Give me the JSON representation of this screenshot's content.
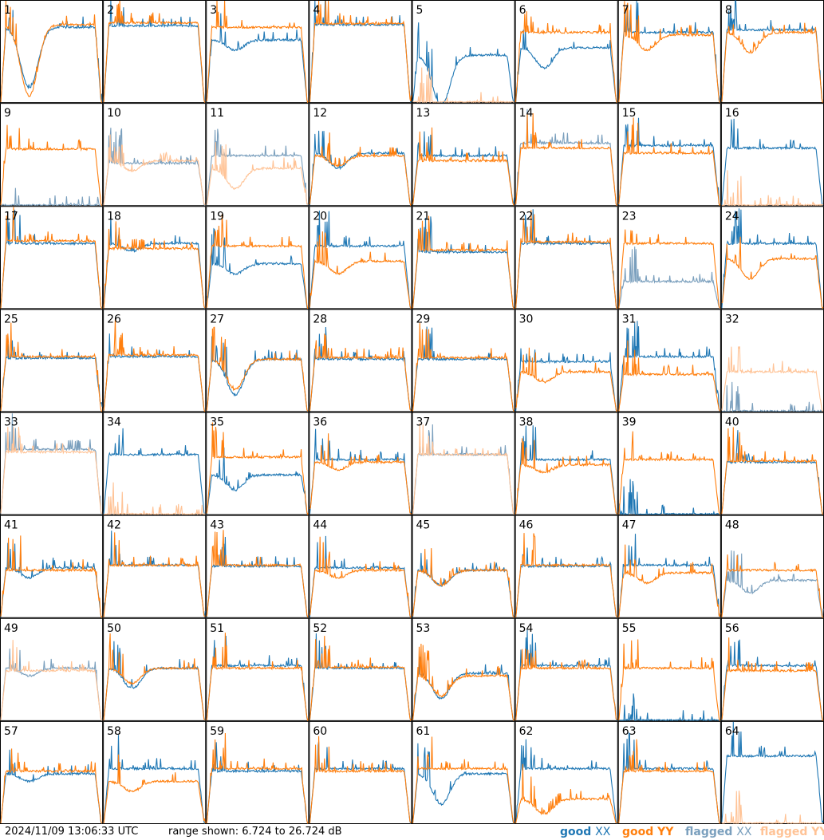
{
  "footer": {
    "timestamp": "2024/11/09 13:06:33 UTC",
    "range_text": "range shown: 6.724 to 26.724 dB"
  },
  "legend": [
    {
      "word": "good",
      "pol": "XX",
      "color": "#1f77b4"
    },
    {
      "word": "good",
      "pol": "YY",
      "color": "#ff7f0e"
    },
    {
      "word": "flagged",
      "pol": "XX",
      "color": "#7a9fbd"
    },
    {
      "word": "flagged",
      "pol": "YY",
      "color": "#ffc396"
    }
  ],
  "colors": {
    "good_xx": "#1f77b4",
    "good_yy": "#ff7f0e",
    "flagged_xx": "#7a9fbd",
    "flagged_yy": "#ffc396"
  },
  "chart_data": {
    "type": "line",
    "title": "",
    "xlabel": "",
    "ylabel": "",
    "ylim": [
      6.724,
      26.724
    ],
    "grid": false,
    "legend_placement": "bottom-right",
    "layout": "8x8 small multiples",
    "panel_profile_levels_db": {
      "description": "approximate flat passband level per panel, in dB",
      "panels": [
        {
          "id": 1,
          "xx": 21.5,
          "yy": 22.0,
          "xx_dip": 12.0,
          "yy_dip": 14.0,
          "xx_flagged": false,
          "yy_flagged": false
        },
        {
          "id": 2,
          "xx": 21.8,
          "yy": 22.4,
          "xx_dip": 0,
          "yy_dip": 0,
          "xx_flagged": false,
          "yy_flagged": false
        },
        {
          "id": 3,
          "xx": 19.0,
          "yy": 21.5,
          "xx_dip": 2.0,
          "yy_dip": 0,
          "xx_flagged": false,
          "yy_flagged": false
        },
        {
          "id": 4,
          "xx": 22.0,
          "yy": 22.2,
          "xx_dip": 0,
          "yy_dip": 0,
          "xx_flagged": false,
          "yy_flagged": false
        },
        {
          "id": 5,
          "xx": 16.0,
          "yy": 6.724,
          "xx_dip": 10.0,
          "yy_dip": 0,
          "xx_flagged": false,
          "yy_flagged": true
        },
        {
          "id": 6,
          "xx": 17.5,
          "yy": 20.5,
          "xx_dip": 4.0,
          "yy_dip": 0,
          "xx_flagged": false,
          "yy_flagged": false
        },
        {
          "id": 7,
          "xx": 20.5,
          "yy": 20.0,
          "xx_dip": 0,
          "yy_dip": 3.0,
          "xx_flagged": false,
          "yy_flagged": false
        },
        {
          "id": 8,
          "xx": 21.0,
          "yy": 20.5,
          "xx_dip": 0,
          "yy_dip": 4.0,
          "xx_flagged": false,
          "yy_flagged": false
        },
        {
          "id": 9,
          "xx": 6.724,
          "yy": 17.8,
          "xx_dip": 0,
          "yy_dip": 0,
          "xx_flagged": true,
          "yy_flagged": false
        },
        {
          "id": 10,
          "xx": 15.0,
          "yy": 15.5,
          "xx_dip": 0,
          "yy_dip": 2.0,
          "xx_flagged": true,
          "yy_flagged": true
        },
        {
          "id": 11,
          "xx": 16.5,
          "yy": 14.0,
          "xx_dip": 0,
          "yy_dip": 4.0,
          "xx_flagged": true,
          "yy_flagged": true
        },
        {
          "id": 12,
          "xx": 17.0,
          "yy": 16.5,
          "xx_dip": 3.0,
          "yy_dip": 2.0,
          "xx_flagged": false,
          "yy_flagged": false
        },
        {
          "id": 13,
          "xx": 16.5,
          "yy": 15.5,
          "xx_dip": 0,
          "yy_dip": 0,
          "xx_flagged": false,
          "yy_flagged": false
        },
        {
          "id": 14,
          "xx": 19.0,
          "yy": 18.0,
          "xx_dip": 0,
          "yy_dip": 0,
          "xx_flagged": true,
          "yy_flagged": false
        },
        {
          "id": 15,
          "xx": 18.5,
          "yy": 17.0,
          "xx_dip": 0,
          "yy_dip": 0,
          "xx_flagged": false,
          "yy_flagged": false
        },
        {
          "id": 16,
          "xx": 18.0,
          "yy": 6.724,
          "xx_dip": 0,
          "yy_dip": 0,
          "xx_flagged": false,
          "yy_flagged": true
        },
        {
          "id": 17,
          "xx": 19.5,
          "yy": 20.0,
          "xx_dip": 0,
          "yy_dip": 0,
          "xx_flagged": false,
          "yy_flagged": false
        },
        {
          "id": 18,
          "xx": 19.5,
          "yy": 18.5,
          "xx_dip": 1.5,
          "yy_dip": 0,
          "xx_flagged": false,
          "yy_flagged": false
        },
        {
          "id": 19,
          "xx": 15.5,
          "yy": 19.0,
          "xx_dip": 2.0,
          "yy_dip": 0,
          "xx_flagged": false,
          "yy_flagged": false
        },
        {
          "id": 20,
          "xx": 19.0,
          "yy": 16.0,
          "xx_dip": 0,
          "yy_dip": 2.5,
          "xx_flagged": false,
          "yy_flagged": false
        },
        {
          "id": 21,
          "xx": 17.8,
          "yy": 18.2,
          "xx_dip": 0,
          "yy_dip": 0,
          "xx_flagged": false,
          "yy_flagged": false
        },
        {
          "id": 22,
          "xx": 19.5,
          "yy": 19.8,
          "xx_dip": 0,
          "yy_dip": 0,
          "xx_flagged": false,
          "yy_flagged": false
        },
        {
          "id": 23,
          "xx": 12.0,
          "yy": 19.5,
          "xx_dip": 0,
          "yy_dip": 0,
          "xx_flagged": true,
          "yy_flagged": false
        },
        {
          "id": 24,
          "xx": 19.5,
          "yy": 16.5,
          "xx_dip": 0,
          "yy_dip": 4.0,
          "xx_flagged": false,
          "yy_flagged": false
        },
        {
          "id": 25,
          "xx": 17.2,
          "yy": 17.5,
          "xx_dip": 0,
          "yy_dip": 0,
          "xx_flagged": false,
          "yy_flagged": false
        },
        {
          "id": 26,
          "xx": 17.5,
          "yy": 17.8,
          "xx_dip": 0,
          "yy_dip": 0,
          "xx_flagged": false,
          "yy_flagged": false
        },
        {
          "id": 27,
          "xx": 17.0,
          "yy": 17.0,
          "xx_dip": 7.0,
          "yy_dip": 6.0,
          "xx_flagged": false,
          "yy_flagged": false
        },
        {
          "id": 28,
          "xx": 17.0,
          "yy": 17.3,
          "xx_dip": 0,
          "yy_dip": 0,
          "xx_flagged": false,
          "yy_flagged": false
        },
        {
          "id": 29,
          "xx": 17.0,
          "yy": 17.3,
          "xx_dip": 0,
          "yy_dip": 0,
          "xx_flagged": false,
          "yy_flagged": false
        },
        {
          "id": 30,
          "xx": 16.5,
          "yy": 14.5,
          "xx_dip": 0,
          "yy_dip": 2.0,
          "xx_flagged": false,
          "yy_flagged": false
        },
        {
          "id": 31,
          "xx": 17.5,
          "yy": 14.0,
          "xx_dip": 0,
          "yy_dip": 0,
          "xx_flagged": false,
          "yy_flagged": false
        },
        {
          "id": 32,
          "xx": 6.724,
          "yy": 14.5,
          "xx_dip": 0,
          "yy_dip": 0,
          "xx_flagged": true,
          "yy_flagged": true
        },
        {
          "id": 33,
          "xx": 19.5,
          "yy": 19.0,
          "xx_dip": 0,
          "yy_dip": 0,
          "xx_flagged": true,
          "yy_flagged": true
        },
        {
          "id": 34,
          "xx": 18.5,
          "yy": 6.724,
          "xx_dip": 0,
          "yy_dip": 0,
          "xx_flagged": false,
          "yy_flagged": true
        },
        {
          "id": 35,
          "xx": 14.5,
          "yy": 18.0,
          "xx_dip": 3.0,
          "yy_dip": 0,
          "xx_flagged": false,
          "yy_flagged": false
        },
        {
          "id": 36,
          "xx": 17.5,
          "yy": 17.0,
          "xx_dip": 0,
          "yy_dip": 1.5,
          "xx_flagged": false,
          "yy_flagged": false
        },
        {
          "id": 37,
          "xx": 18.5,
          "yy": 18.5,
          "xx_dip": 0,
          "yy_dip": 0,
          "xx_flagged": true,
          "yy_flagged": true
        },
        {
          "id": 38,
          "xx": 17.5,
          "yy": 16.5,
          "xx_dip": 0,
          "yy_dip": 1.5,
          "xx_flagged": false,
          "yy_flagged": false
        },
        {
          "id": 39,
          "xx": 6.724,
          "yy": 17.5,
          "xx_dip": 0,
          "yy_dip": 0,
          "xx_flagged": false,
          "yy_flagged": false
        },
        {
          "id": 40,
          "xx": 17.0,
          "yy": 17.2,
          "xx_dip": 0,
          "yy_dip": 0,
          "xx_flagged": false,
          "yy_flagged": false
        },
        {
          "id": 41,
          "xx": 16.5,
          "yy": 16.0,
          "xx_dip": 2.0,
          "yy_dip": 0,
          "xx_flagged": false,
          "yy_flagged": false
        },
        {
          "id": 42,
          "xx": 17.0,
          "yy": 17.0,
          "xx_dip": 0,
          "yy_dip": 0,
          "xx_flagged": false,
          "yy_flagged": false
        },
        {
          "id": 43,
          "xx": 16.8,
          "yy": 17.0,
          "xx_dip": 0,
          "yy_dip": 0,
          "xx_flagged": false,
          "yy_flagged": false
        },
        {
          "id": 44,
          "xx": 16.5,
          "yy": 16.0,
          "xx_dip": 0,
          "yy_dip": 1.5,
          "xx_flagged": false,
          "yy_flagged": false
        },
        {
          "id": 45,
          "xx": 16.0,
          "yy": 16.0,
          "xx_dip": 3.0,
          "yy_dip": 3.0,
          "xx_flagged": false,
          "yy_flagged": false
        },
        {
          "id": 46,
          "xx": 16.8,
          "yy": 17.0,
          "xx_dip": 0,
          "yy_dip": 0,
          "xx_flagged": false,
          "yy_flagged": false
        },
        {
          "id": 47,
          "xx": 17.0,
          "yy": 15.5,
          "xx_dip": 0,
          "yy_dip": 2.0,
          "xx_flagged": false,
          "yy_flagged": false
        },
        {
          "id": 48,
          "xx": 14.0,
          "yy": 16.0,
          "xx_dip": 2.5,
          "yy_dip": 0,
          "xx_flagged": true,
          "yy_flagged": false
        },
        {
          "id": 49,
          "xx": 17.0,
          "yy": 16.5,
          "xx_dip": 1.5,
          "yy_dip": 0,
          "xx_flagged": true,
          "yy_flagged": true
        },
        {
          "id": 50,
          "xx": 17.0,
          "yy": 17.0,
          "xx_dip": 4.0,
          "yy_dip": 3.0,
          "xx_flagged": false,
          "yy_flagged": false
        },
        {
          "id": 51,
          "xx": 17.5,
          "yy": 17.0,
          "xx_dip": 0,
          "yy_dip": 0,
          "xx_flagged": false,
          "yy_flagged": false
        },
        {
          "id": 52,
          "xx": 17.0,
          "yy": 17.2,
          "xx_dip": 0,
          "yy_dip": 0,
          "xx_flagged": false,
          "yy_flagged": false
        },
        {
          "id": 53,
          "xx": 16.0,
          "yy": 15.5,
          "xx_dip": 5.0,
          "yy_dip": 4.0,
          "xx_flagged": false,
          "yy_flagged": false
        },
        {
          "id": 54,
          "xx": 17.5,
          "yy": 17.0,
          "xx_dip": 0,
          "yy_dip": 0,
          "xx_flagged": false,
          "yy_flagged": false
        },
        {
          "id": 55,
          "xx": 6.724,
          "yy": 17.0,
          "xx_dip": 0,
          "yy_dip": 0,
          "xx_flagged": false,
          "yy_flagged": false
        },
        {
          "id": 56,
          "xx": 17.5,
          "yy": 16.5,
          "xx_dip": 0,
          "yy_dip": 0,
          "xx_flagged": false,
          "yy_flagged": false
        },
        {
          "id": 57,
          "xx": 16.5,
          "yy": 17.0,
          "xx_dip": 1.5,
          "yy_dip": 0,
          "xx_flagged": false,
          "yy_flagged": false
        },
        {
          "id": 58,
          "xx": 17.5,
          "yy": 15.0,
          "xx_dip": 0,
          "yy_dip": 2.0,
          "xx_flagged": false,
          "yy_flagged": false
        },
        {
          "id": 59,
          "xx": 17.0,
          "yy": 17.5,
          "xx_dip": 0,
          "yy_dip": 0,
          "xx_flagged": false,
          "yy_flagged": false
        },
        {
          "id": 60,
          "xx": 17.5,
          "yy": 17.0,
          "xx_dip": 0,
          "yy_dip": 0,
          "xx_flagged": false,
          "yy_flagged": false
        },
        {
          "id": 61,
          "xx": 16.5,
          "yy": 17.5,
          "xx_dip": 6.0,
          "yy_dip": 0,
          "xx_flagged": false,
          "yy_flagged": false
        },
        {
          "id": 62,
          "xx": 17.5,
          "yy": 11.5,
          "xx_dip": 0,
          "yy_dip": 3.0,
          "xx_flagged": false,
          "yy_flagged": false
        },
        {
          "id": 63,
          "xx": 17.5,
          "yy": 17.0,
          "xx_dip": 0,
          "yy_dip": 0,
          "xx_flagged": false,
          "yy_flagged": false
        },
        {
          "id": 64,
          "xx": 20.0,
          "yy": 6.724,
          "xx_dip": 0,
          "yy_dip": 0,
          "xx_flagged": false,
          "yy_flagged": true
        }
      ]
    },
    "series": [
      {
        "name": "good XX"
      },
      {
        "name": "good YY"
      },
      {
        "name": "flagged XX"
      },
      {
        "name": "flagged YY"
      }
    ]
  }
}
